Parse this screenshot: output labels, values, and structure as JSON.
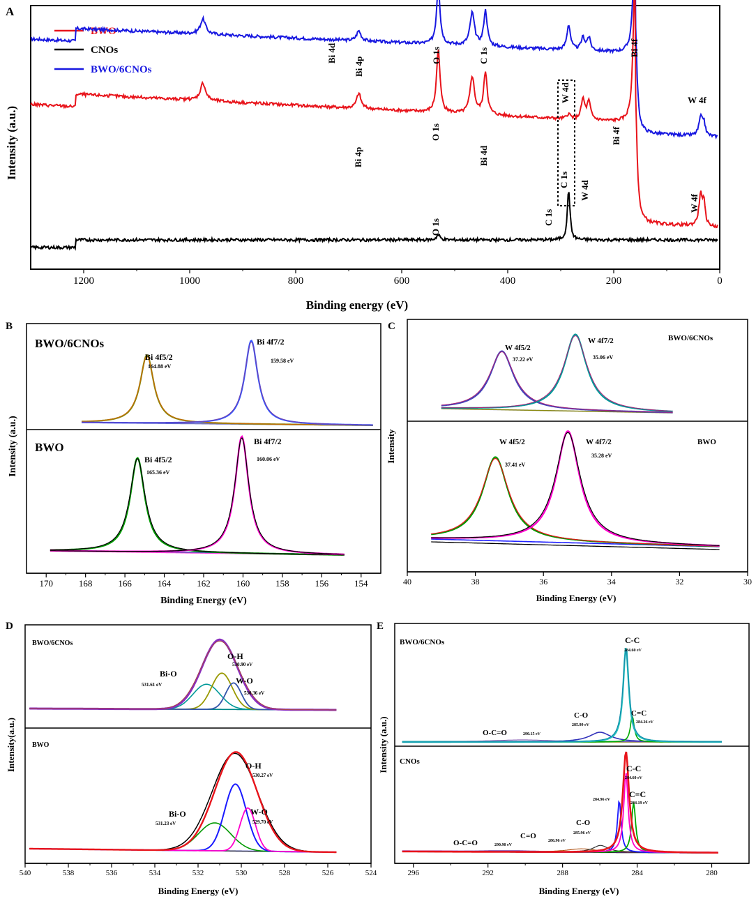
{
  "chart_data": [
    {
      "panel": "A",
      "type": "line",
      "title": "",
      "xlabel": "Binding energy (eV)",
      "ylabel": "Intensity (a.u.)",
      "xlim": [
        1300,
        0
      ],
      "xticks": [
        1200,
        1000,
        800,
        600,
        400,
        200,
        0
      ],
      "legend": [
        {
          "name": "BWO",
          "color": "#e8141b"
        },
        {
          "name": "CNOs",
          "color": "#000000"
        },
        {
          "name": "BWO/6CNOs",
          "color": "#1818e0"
        }
      ],
      "series": [
        {
          "name": "BWO/6CNOs",
          "color": "#1818e0",
          "base": 0.78,
          "slope": 0.12,
          "peaks": [
            [
              975,
              0.06,
              6
            ],
            [
              681,
              0.04,
              5
            ],
            [
              531,
              0.23,
              4
            ],
            [
              467,
              0.13,
              5
            ],
            [
              442,
              0.14,
              4
            ],
            [
              285,
              0.1,
              4
            ],
            [
              258,
              0.05,
              4
            ],
            [
              247,
              0.05,
              4
            ],
            [
              160,
              0.48,
              4
            ],
            [
              36,
              0.07,
              4
            ],
            [
              30,
              0.05,
              3
            ]
          ],
          "steps": [
            [
              1215,
              0.05
            ],
            [
              160,
              -0.32
            ]
          ]
        },
        {
          "name": "BWO",
          "color": "#e8141b",
          "base": 0.5,
          "slope": 0.14,
          "peaks": [
            [
              975,
              0.07,
              6
            ],
            [
              681,
              0.06,
              5
            ],
            [
              531,
              0.25,
              4
            ],
            [
              467,
              0.15,
              5
            ],
            [
              442,
              0.17,
              4
            ],
            [
              285,
              0.02,
              4
            ],
            [
              258,
              0.08,
              4
            ],
            [
              247,
              0.07,
              4
            ],
            [
              160,
              0.58,
              4
            ],
            [
              36,
              0.12,
              4
            ],
            [
              30,
              0.08,
              3
            ]
          ],
          "steps": [
            [
              1215,
              0.05
            ],
            [
              160,
              -0.4
            ]
          ]
        },
        {
          "name": "CNOs",
          "color": "#000000",
          "base": 0.07,
          "slope": 0.0,
          "peaks": [
            [
              531,
              0.02,
              4
            ],
            [
              285,
              0.2,
              3
            ]
          ],
          "steps": [
            [
              1215,
              0.03
            ]
          ]
        }
      ],
      "annotations": {
        "blue": [
          "Bi 4p",
          "O 1s",
          "Bi 4d",
          "C 1s",
          "W 4d",
          "Bi 4f",
          "W 4f"
        ],
        "red": [
          "Bi 4p",
          "O 1s",
          "Bi 4d",
          "C 1s",
          "W 4d",
          "Bi 4f",
          "W 4f"
        ],
        "black": [
          "O 1s",
          "C 1s"
        ]
      }
    },
    {
      "panel": "B",
      "type": "line",
      "xlabel": "Binding Energy (eV)",
      "ylabel": "Intensity (a.u.)",
      "xlim": [
        171,
        153
      ],
      "xticks": [
        170,
        168,
        166,
        164,
        162,
        160,
        158,
        156,
        154
      ],
      "subpanels": [
        {
          "label": "BWO/6CNOs",
          "peaks": [
            {
              "name": "Bi 4f5/2",
              "ev": "164.88 eV",
              "center": 164.88,
              "color": "#8a8a10"
            },
            {
              "name": "Bi 4f7/2",
              "ev": "159.58 eV",
              "center": 159.58,
              "color": "#3355ff"
            }
          ]
        },
        {
          "label": "BWO",
          "peaks": [
            {
              "name": "Bi 4f5/2",
              "ev": "165.36 eV",
              "center": 165.36,
              "color": "#009900"
            },
            {
              "name": "Bi 4f7/2",
              "ev": "160.06 eV",
              "center": 160.06,
              "color": "#ff00cc"
            }
          ]
        }
      ]
    },
    {
      "panel": "C",
      "type": "line",
      "xlabel": "Binding Energy (eV)",
      "ylabel": "Intensity",
      "xlim": [
        40,
        30
      ],
      "xticks": [
        40,
        38,
        36,
        34,
        32,
        30
      ],
      "subpanels": [
        {
          "label": "BWO/6CNOs",
          "peaks": [
            {
              "name": "W 4f5/2",
              "ev": "37.22 eV",
              "center": 37.22,
              "color": "#4444bb"
            },
            {
              "name": "W 4f7/2",
              "ev": "35.06 eV",
              "center": 35.06,
              "color": "#009999"
            }
          ]
        },
        {
          "label": "BWO",
          "peaks": [
            {
              "name": "W 4f5/2",
              "ev": "37.41 eV",
              "center": 37.41,
              "color": "#009900"
            },
            {
              "name": "W 4f7/2",
              "ev": "35.28 eV",
              "center": 35.28,
              "color": "#ff00cc"
            }
          ]
        }
      ]
    },
    {
      "panel": "D",
      "type": "line",
      "xlabel": "Binding Energy (eV)",
      "ylabel": "Intensity(a.u.)",
      "xlim": [
        540,
        524
      ],
      "xticks": [
        540,
        538,
        536,
        534,
        532,
        530,
        528,
        526,
        524
      ],
      "subpanels": [
        {
          "label": "BWO/6CNOs",
          "peaks": [
            {
              "name": "O-H",
              "ev": "530.90 eV",
              "center": 530.9,
              "color": "#999900"
            },
            {
              "name": "Bi-O",
              "ev": "531.61 eV",
              "center": 531.61,
              "color": "#009999"
            },
            {
              "name": "W-O",
              "ev": "530.36 eV",
              "center": 530.36,
              "color": "#3355aa"
            }
          ]
        },
        {
          "label": "BWO",
          "peaks": [
            {
              "name": "O-H",
              "ev": "530.27 eV",
              "center": 530.27,
              "color": "#1a1aff"
            },
            {
              "name": "Bi-O",
              "ev": "531.23 eV",
              "center": 531.23,
              "color": "#009900"
            },
            {
              "name": "W-O",
              "ev": "529.70 eV",
              "center": 529.7,
              "color": "#ff00cc"
            }
          ]
        }
      ]
    },
    {
      "panel": "E",
      "type": "line",
      "xlabel": "Binding Energy (eV)",
      "ylabel": "Intensity (a.u.)",
      "xlim": [
        297,
        278
      ],
      "xticks": [
        296,
        292,
        288,
        284,
        280
      ],
      "subpanels": [
        {
          "label": "BWO/6CNOs",
          "peaks": [
            {
              "name": "C-C",
              "ev": "284.60 eV",
              "center": 284.6
            },
            {
              "name": "C=C",
              "ev": "284.26 eV",
              "center": 284.26
            },
            {
              "name": "C-O",
              "ev": "285.99 eV",
              "center": 285.99
            },
            {
              "name": "O-C=O",
              "ev": "290.15 eV",
              "center": 290.15
            }
          ]
        },
        {
          "label": "CNOs",
          "peaks": [
            {
              "name": "C-C",
              "ev": "284.60 eV",
              "center": 284.6
            },
            {
              "name": "C=C",
              "ev": "284.19 eV",
              "center": 284.19
            },
            {
              "name": "",
              "ev": "284.96 eV",
              "center": 284.96
            },
            {
              "name": "C-O",
              "ev": "285.96 eV",
              "center": 285.96
            },
            {
              "name": "C=O",
              "ev": "286.96 eV",
              "center": 286.96
            },
            {
              "name": "O-C=O",
              "ev": "290.90 eV",
              "center": 290.9
            }
          ]
        }
      ]
    }
  ]
}
